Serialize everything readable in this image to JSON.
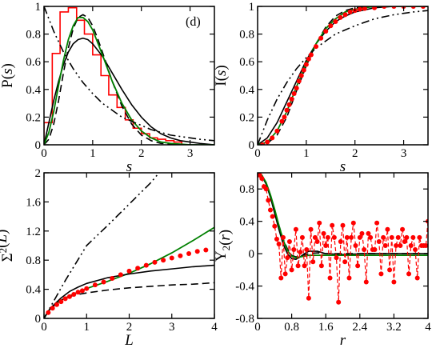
{
  "chart_data": [
    {
      "type": "line",
      "panel_tag": "(d)",
      "xlabel": "s",
      "ylabel": "P(s)",
      "xlim": [
        0,
        3.5
      ],
      "ylim": [
        0,
        1.0
      ],
      "xticks": [
        0,
        1,
        2,
        3
      ],
      "yticks": [
        0,
        0.2,
        0.4,
        0.6,
        0.8,
        1.0
      ],
      "xtick_labels": [
        "0",
        "1",
        "2",
        "3"
      ],
      "ytick_labels": [
        "0",
        "0.2",
        "0.4",
        "0.6",
        "0.8",
        "1"
      ],
      "histogram": {
        "color": "#ff0000",
        "edges": [
          0,
          0.17,
          0.33,
          0.5,
          0.67,
          0.83,
          1.0,
          1.17,
          1.33,
          1.5,
          1.67,
          1.83,
          2.0,
          2.17,
          2.33,
          2.5,
          2.67,
          2.83,
          3.0
        ],
        "values": [
          0.16,
          0.66,
          0.96,
          0.99,
          0.9,
          0.8,
          0.65,
          0.5,
          0.36,
          0.27,
          0.18,
          0.12,
          0.08,
          0.05,
          0.04,
          0.03,
          0.02,
          0.0
        ]
      },
      "series": [
        {
          "style": "solid",
          "color": "#000000",
          "x": [
            0,
            0.1,
            0.2,
            0.3,
            0.4,
            0.5,
            0.6,
            0.7,
            0.8,
            0.9,
            1.0,
            1.2,
            1.4,
            1.6,
            1.8,
            2.0,
            2.2,
            2.4,
            2.6,
            2.8,
            3.0,
            3.2,
            3.5
          ],
          "y": [
            0,
            0.16,
            0.32,
            0.46,
            0.58,
            0.67,
            0.73,
            0.76,
            0.77,
            0.76,
            0.73,
            0.64,
            0.52,
            0.4,
            0.29,
            0.2,
            0.13,
            0.08,
            0.05,
            0.03,
            0.02,
            0.01,
            0.0
          ]
        },
        {
          "style": "dashed",
          "color": "#000000",
          "x": [
            0,
            0.1,
            0.2,
            0.3,
            0.4,
            0.5,
            0.6,
            0.7,
            0.8,
            0.9,
            1.0,
            1.1,
            1.2,
            1.4,
            1.6,
            1.8,
            2.0,
            2.2,
            2.4,
            2.6,
            2.8,
            3.0,
            3.5
          ],
          "y": [
            0,
            0.04,
            0.15,
            0.32,
            0.52,
            0.7,
            0.84,
            0.92,
            0.94,
            0.92,
            0.86,
            0.77,
            0.67,
            0.46,
            0.28,
            0.15,
            0.07,
            0.03,
            0.01,
            0.005,
            0.0,
            0.0,
            0.0
          ]
        },
        {
          "style": "solid",
          "color": "#008000",
          "x": [
            0,
            0.1,
            0.2,
            0.3,
            0.4,
            0.5,
            0.6,
            0.7,
            0.8,
            0.9,
            1.0,
            1.1,
            1.2,
            1.4,
            1.6,
            1.8,
            2.0,
            2.2,
            2.4,
            2.6,
            2.8,
            3.0,
            3.5
          ],
          "y": [
            0,
            0.09,
            0.24,
            0.43,
            0.61,
            0.76,
            0.86,
            0.92,
            0.92,
            0.89,
            0.83,
            0.74,
            0.65,
            0.46,
            0.3,
            0.18,
            0.1,
            0.05,
            0.02,
            0.01,
            0.005,
            0.0,
            0.0
          ]
        },
        {
          "style": "dashdotdot",
          "color": "#000000",
          "x": [
            0,
            0.2,
            0.4,
            0.6,
            0.8,
            1.0,
            1.2,
            1.4,
            1.6,
            1.8,
            2.0,
            2.2,
            2.4,
            2.6,
            2.8,
            3.0,
            3.2,
            3.5
          ],
          "y": [
            1.0,
            0.82,
            0.67,
            0.55,
            0.45,
            0.37,
            0.3,
            0.25,
            0.2,
            0.17,
            0.14,
            0.11,
            0.09,
            0.07,
            0.06,
            0.05,
            0.04,
            0.03
          ]
        }
      ]
    },
    {
      "type": "line",
      "xlabel": "s",
      "ylabel": "I(s)",
      "xlim": [
        0,
        3.5
      ],
      "ylim": [
        0,
        1.0
      ],
      "xticks": [
        0,
        1,
        2,
        3
      ],
      "yticks": [
        0,
        0.2,
        0.4,
        0.6,
        0.8,
        1.0
      ],
      "xtick_labels": [
        "0",
        "1",
        "2",
        "3"
      ],
      "ytick_labels": [
        "0",
        "0.2",
        "0.4",
        "0.6",
        "0.8",
        "1"
      ],
      "series": [
        {
          "style": "solid",
          "color": "#000000",
          "x": [
            0,
            0.2,
            0.4,
            0.6,
            0.8,
            1.0,
            1.2,
            1.4,
            1.6,
            1.8,
            2.0,
            2.4,
            2.8,
            3.2,
            3.5
          ],
          "y": [
            0,
            0.05,
            0.16,
            0.31,
            0.46,
            0.61,
            0.73,
            0.82,
            0.89,
            0.93,
            0.96,
            0.99,
            1.0,
            1.0,
            1.0
          ]
        },
        {
          "style": "dashed",
          "color": "#000000",
          "x": [
            0,
            0.2,
            0.4,
            0.6,
            0.8,
            1.0,
            1.2,
            1.4,
            1.6,
            1.8,
            2.0,
            2.4,
            2.8,
            3.2,
            3.5
          ],
          "y": [
            0,
            0.01,
            0.07,
            0.2,
            0.39,
            0.57,
            0.73,
            0.85,
            0.93,
            0.97,
            0.99,
            1.0,
            1.0,
            1.0,
            1.0
          ]
        },
        {
          "style": "solid",
          "color": "#008000",
          "x": [
            0,
            0.2,
            0.4,
            0.6,
            0.8,
            1.0,
            1.2,
            1.4,
            1.6,
            1.8,
            2.0,
            2.4,
            2.8,
            3.2,
            3.5
          ],
          "y": [
            0,
            0.02,
            0.1,
            0.24,
            0.42,
            0.59,
            0.73,
            0.84,
            0.91,
            0.96,
            0.98,
            1.0,
            1.0,
            1.0,
            1.0
          ]
        },
        {
          "style": "dashdotdot",
          "color": "#000000",
          "x": [
            0,
            0.2,
            0.4,
            0.6,
            0.8,
            1.0,
            1.2,
            1.4,
            1.6,
            1.8,
            2.0,
            2.4,
            2.8,
            3.2,
            3.5
          ],
          "y": [
            0,
            0.18,
            0.33,
            0.45,
            0.55,
            0.63,
            0.7,
            0.75,
            0.8,
            0.83,
            0.86,
            0.91,
            0.94,
            0.96,
            0.97
          ]
        },
        {
          "style": "dots",
          "color": "#ff0000",
          "x": [
            0.1,
            0.2,
            0.3,
            0.4,
            0.5,
            0.55,
            0.6,
            0.65,
            0.7,
            0.75,
            0.8,
            0.85,
            0.9,
            0.95,
            1.0,
            1.05,
            1.1,
            1.2,
            1.3,
            1.4,
            1.5,
            1.6,
            1.7,
            1.8,
            1.9,
            2.0,
            2.1,
            2.2,
            2.4,
            2.6,
            2.8,
            3.0,
            3.2,
            3.4
          ],
          "y": [
            0.0,
            0.02,
            0.05,
            0.1,
            0.17,
            0.2,
            0.25,
            0.29,
            0.33,
            0.37,
            0.41,
            0.46,
            0.5,
            0.54,
            0.58,
            0.62,
            0.65,
            0.71,
            0.77,
            0.82,
            0.86,
            0.89,
            0.92,
            0.94,
            0.96,
            0.97,
            0.98,
            0.985,
            0.99,
            1.0,
            1.0,
            1.0,
            1.0,
            1.0
          ]
        }
      ]
    },
    {
      "type": "line",
      "xlabel": "L",
      "ylabel": "Σ2(L)",
      "ylabel_base": "Σ",
      "ylabel_sup": "2",
      "ylabel_rest": "(L)",
      "xlim": [
        0,
        4
      ],
      "ylim": [
        0,
        2.0
      ],
      "xticks": [
        0,
        1,
        2,
        3,
        4
      ],
      "yticks": [
        0,
        0.4,
        0.8,
        1.2,
        1.6,
        2.0
      ],
      "xtick_labels": [
        "0",
        "1",
        "2",
        "3",
        "4"
      ],
      "ytick_labels": [
        "0",
        "0.4",
        "0.8",
        "1.2",
        "1.6",
        "2"
      ],
      "series": [
        {
          "style": "dashdotdot",
          "color": "#000000",
          "x": [
            0,
            0.5,
            1.0,
            1.5,
            2.0,
            2.5,
            2.7
          ],
          "y": [
            0,
            0.52,
            1.0,
            1.28,
            1.57,
            1.86,
            2.0
          ]
        },
        {
          "style": "solid",
          "color": "#008000",
          "x": [
            0,
            0.1,
            0.2,
            0.4,
            0.6,
            0.8,
            1.0,
            1.5,
            2.0,
            2.5,
            3.0,
            3.5,
            4.0
          ],
          "y": [
            0,
            0.1,
            0.16,
            0.25,
            0.31,
            0.36,
            0.41,
            0.51,
            0.62,
            0.75,
            0.9,
            1.07,
            1.25
          ]
        },
        {
          "style": "solid",
          "color": "#000000",
          "x": [
            0,
            0.1,
            0.2,
            0.4,
            0.6,
            0.8,
            1.0,
            1.5,
            2.0,
            2.5,
            3.0,
            3.5,
            4.0
          ],
          "y": [
            0,
            0.1,
            0.17,
            0.28,
            0.37,
            0.43,
            0.48,
            0.56,
            0.61,
            0.65,
            0.68,
            0.71,
            0.73
          ]
        },
        {
          "style": "dashed",
          "color": "#000000",
          "x": [
            0,
            0.1,
            0.2,
            0.4,
            0.6,
            0.8,
            1.0,
            1.5,
            2.0,
            2.5,
            3.0,
            3.5,
            4.0
          ],
          "y": [
            0,
            0.1,
            0.16,
            0.25,
            0.3,
            0.33,
            0.35,
            0.39,
            0.42,
            0.44,
            0.46,
            0.47,
            0.49
          ]
        },
        {
          "style": "dots",
          "color": "#ff0000",
          "x": [
            0.1,
            0.2,
            0.3,
            0.4,
            0.5,
            0.6,
            0.7,
            0.8,
            0.9,
            1.0,
            1.2,
            1.4,
            1.6,
            1.8,
            2.0,
            2.2,
            2.4,
            2.6,
            2.8,
            3.0,
            3.2,
            3.4,
            3.6,
            3.8
          ],
          "y": [
            0.08,
            0.14,
            0.19,
            0.23,
            0.27,
            0.3,
            0.33,
            0.36,
            0.38,
            0.41,
            0.46,
            0.5,
            0.55,
            0.6,
            0.65,
            0.69,
            0.73,
            0.77,
            0.8,
            0.83,
            0.86,
            0.89,
            0.92,
            0.94
          ]
        }
      ]
    },
    {
      "type": "line",
      "xlabel": "r",
      "ylabel": "Y2(r)",
      "ylabel_base": "Y",
      "ylabel_sub": "2",
      "ylabel_rest": "(r)",
      "xlim": [
        0,
        4
      ],
      "ylim": [
        -0.8,
        1.0
      ],
      "xticks": [
        0,
        0.8,
        1.6,
        2.4,
        3.2,
        4.0
      ],
      "yticks": [
        -0.8,
        -0.4,
        0,
        0.4,
        0.8
      ],
      "xtick_labels": [
        "0",
        "0.8",
        "1.6",
        "2.4",
        "3.2",
        "4"
      ],
      "ytick_labels": [
        "-0.8",
        "-0.4",
        "0",
        "0.4",
        "0.8"
      ],
      "series": [
        {
          "style": "solid",
          "color": "#000000",
          "x": [
            0,
            0.1,
            0.2,
            0.3,
            0.4,
            0.5,
            0.6,
            0.7,
            0.8,
            0.9,
            1.0,
            1.1,
            1.2,
            1.4,
            1.6,
            2.0,
            2.5,
            3.0,
            3.5,
            4.0
          ],
          "y": [
            1.0,
            0.96,
            0.86,
            0.7,
            0.5,
            0.3,
            0.12,
            0.0,
            -0.06,
            -0.07,
            -0.04,
            0.0,
            0.03,
            0.03,
            0.0,
            -0.01,
            0.0,
            0.0,
            0.0,
            0.0
          ]
        },
        {
          "style": "dashed",
          "color": "#000000",
          "x": [
            0,
            0.1,
            0.2,
            0.3,
            0.4,
            0.5,
            0.6,
            0.7,
            0.8,
            0.9,
            1.0,
            1.2,
            1.4,
            1.6,
            2.0,
            3.0,
            4.0
          ],
          "y": [
            1.0,
            0.97,
            0.87,
            0.72,
            0.54,
            0.35,
            0.18,
            0.06,
            -0.02,
            -0.04,
            -0.03,
            0.0,
            0.01,
            0.0,
            0.0,
            0.0,
            0.0
          ]
        },
        {
          "style": "solid",
          "color": "#008000",
          "x": [
            0,
            0.1,
            0.2,
            0.3,
            0.4,
            0.5,
            0.6,
            0.7,
            0.8,
            0.9,
            1.0,
            1.2,
            1.4,
            1.6,
            2.0,
            3.0,
            4.0
          ],
          "y": [
            1.0,
            0.97,
            0.88,
            0.73,
            0.55,
            0.35,
            0.17,
            0.04,
            -0.03,
            -0.05,
            -0.04,
            -0.02,
            -0.02,
            -0.02,
            -0.02,
            -0.02,
            -0.02
          ]
        },
        {
          "style": "dashed-markers",
          "color": "#ff0000",
          "x": [
            0.0,
            0.05,
            0.1,
            0.15,
            0.2,
            0.25,
            0.3,
            0.35,
            0.4,
            0.45,
            0.5,
            0.55,
            0.6,
            0.65,
            0.7,
            0.75,
            0.8,
            0.85,
            0.9,
            0.95,
            1.0,
            1.05,
            1.1,
            1.15,
            1.2,
            1.25,
            1.3,
            1.35,
            1.4,
            1.45,
            1.5,
            1.55,
            1.6,
            1.65,
            1.7,
            1.75,
            1.8,
            1.85,
            1.9,
            1.95,
            2.0,
            2.05,
            2.1,
            2.15,
            2.2,
            2.25,
            2.3,
            2.35,
            2.4,
            2.45,
            2.5,
            2.55,
            2.6,
            2.65,
            2.7,
            2.75,
            2.8,
            2.85,
            2.9,
            2.95,
            3.0,
            3.05,
            3.1,
            3.15,
            3.2,
            3.25,
            3.3,
            3.35,
            3.4,
            3.45,
            3.5,
            3.55,
            3.6,
            3.65,
            3.7,
            3.75,
            3.8,
            3.85,
            3.9,
            3.95,
            4.0
          ],
          "y": [
            1.0,
            0.97,
            0.93,
            0.83,
            0.8,
            0.66,
            0.54,
            0.46,
            0.34,
            0.18,
            0.12,
            -0.3,
            0.2,
            -0.25,
            -0.05,
            0.15,
            -0.2,
            0.05,
            0.3,
            -0.15,
            0.02,
            0.2,
            -0.15,
            0.05,
            -0.55,
            0.3,
            -0.1,
            0.2,
            0.15,
            0.38,
            -0.15,
            0.25,
            0.1,
            0.2,
            -0.3,
            0.35,
            0.2,
            -0.05,
            -0.6,
            0.15,
            0.35,
            -0.1,
            0.2,
            -0.3,
            0.2,
            0.38,
            0.1,
            -0.15,
            0.2,
            0.25,
            0.05,
            -0.35,
            0.25,
            0.2,
            0.05,
            0.05,
            0.38,
            0.15,
            -0.25,
            0.2,
            0.1,
            0.3,
            -0.2,
            0.2,
            -0.35,
            0.1,
            0.2,
            0.1,
            0.3,
            0.15,
            0.2,
            -0.25,
            0.1,
            0.2,
            0.05,
            -0.3,
            0.2,
            0.1,
            0.1,
            0.1,
            0.4
          ]
        }
      ]
    }
  ]
}
